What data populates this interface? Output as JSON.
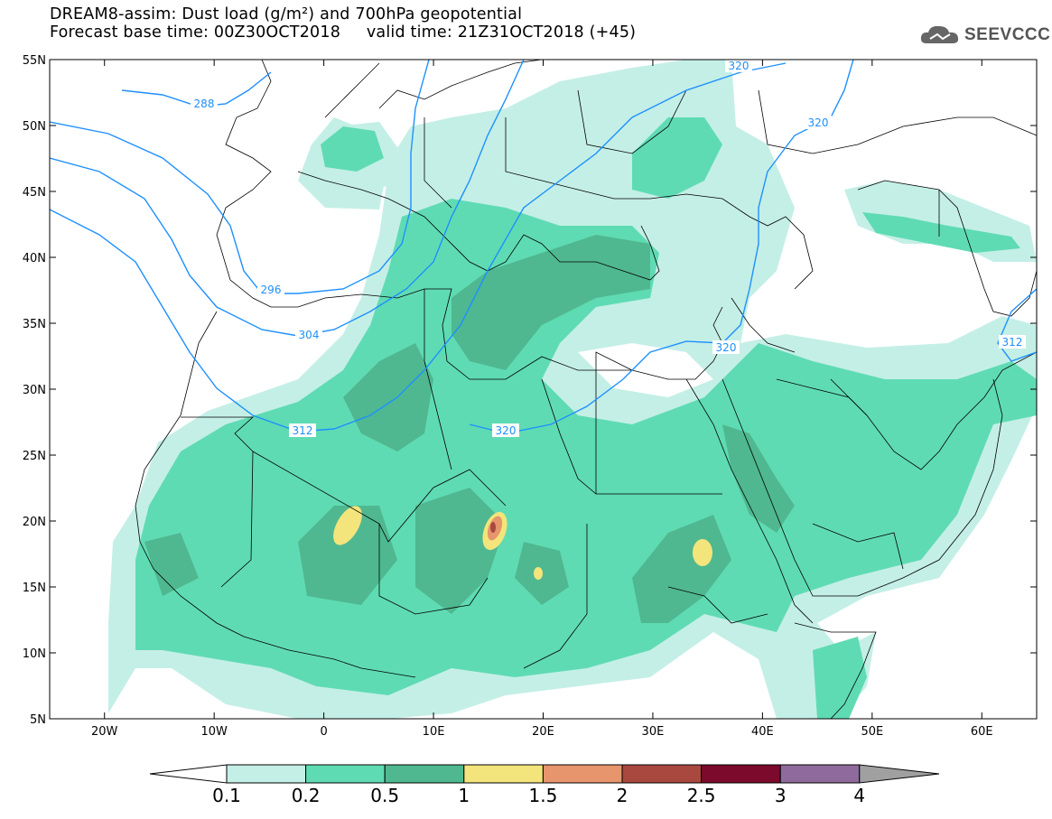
{
  "title": {
    "line1": "DREAM8-assim: Dust load (g/m²) and 700hPa geopotential",
    "line2": "Forecast base time: 00Z30OCT2018     valid time: 21Z31OCT2018 (+45)"
  },
  "logo": {
    "text": "SEEVCCC",
    "icon": "cloud-icon"
  },
  "map": {
    "lon_min": -25,
    "lon_max": 65,
    "lat_min": 5,
    "lat_max": 55,
    "lat_labels": [
      "5N",
      "10N",
      "15N",
      "20N",
      "25N",
      "30N",
      "35N",
      "40N",
      "45N",
      "50N",
      "55N"
    ],
    "lat_values": [
      5,
      10,
      15,
      20,
      25,
      30,
      35,
      40,
      45,
      50,
      55
    ],
    "lon_labels": [
      "20W",
      "10W",
      "0",
      "10E",
      "20E",
      "30E",
      "40E",
      "50E",
      "60E"
    ],
    "lon_values": [
      -20,
      -10,
      0,
      10,
      20,
      30,
      40,
      50,
      60
    ]
  },
  "colorbar": {
    "levels": [
      "0.1",
      "0.2",
      "0.5",
      "1",
      "1.5",
      "2",
      "2.5",
      "3",
      "4"
    ],
    "colors": [
      "#c4efe6",
      "#5fdbb3",
      "#4fb890",
      "#f3e57b",
      "#e7956c",
      "#a9483f",
      "#7b0a2c",
      "#8e6b9c"
    ],
    "under_color": "#ffffff",
    "over_color": "#a0a0a0"
  },
  "contours": {
    "color": "#1e90ff",
    "labels": [
      "288",
      "296",
      "304",
      "312",
      "320",
      "312",
      "320",
      "320",
      "320",
      "312"
    ]
  }
}
